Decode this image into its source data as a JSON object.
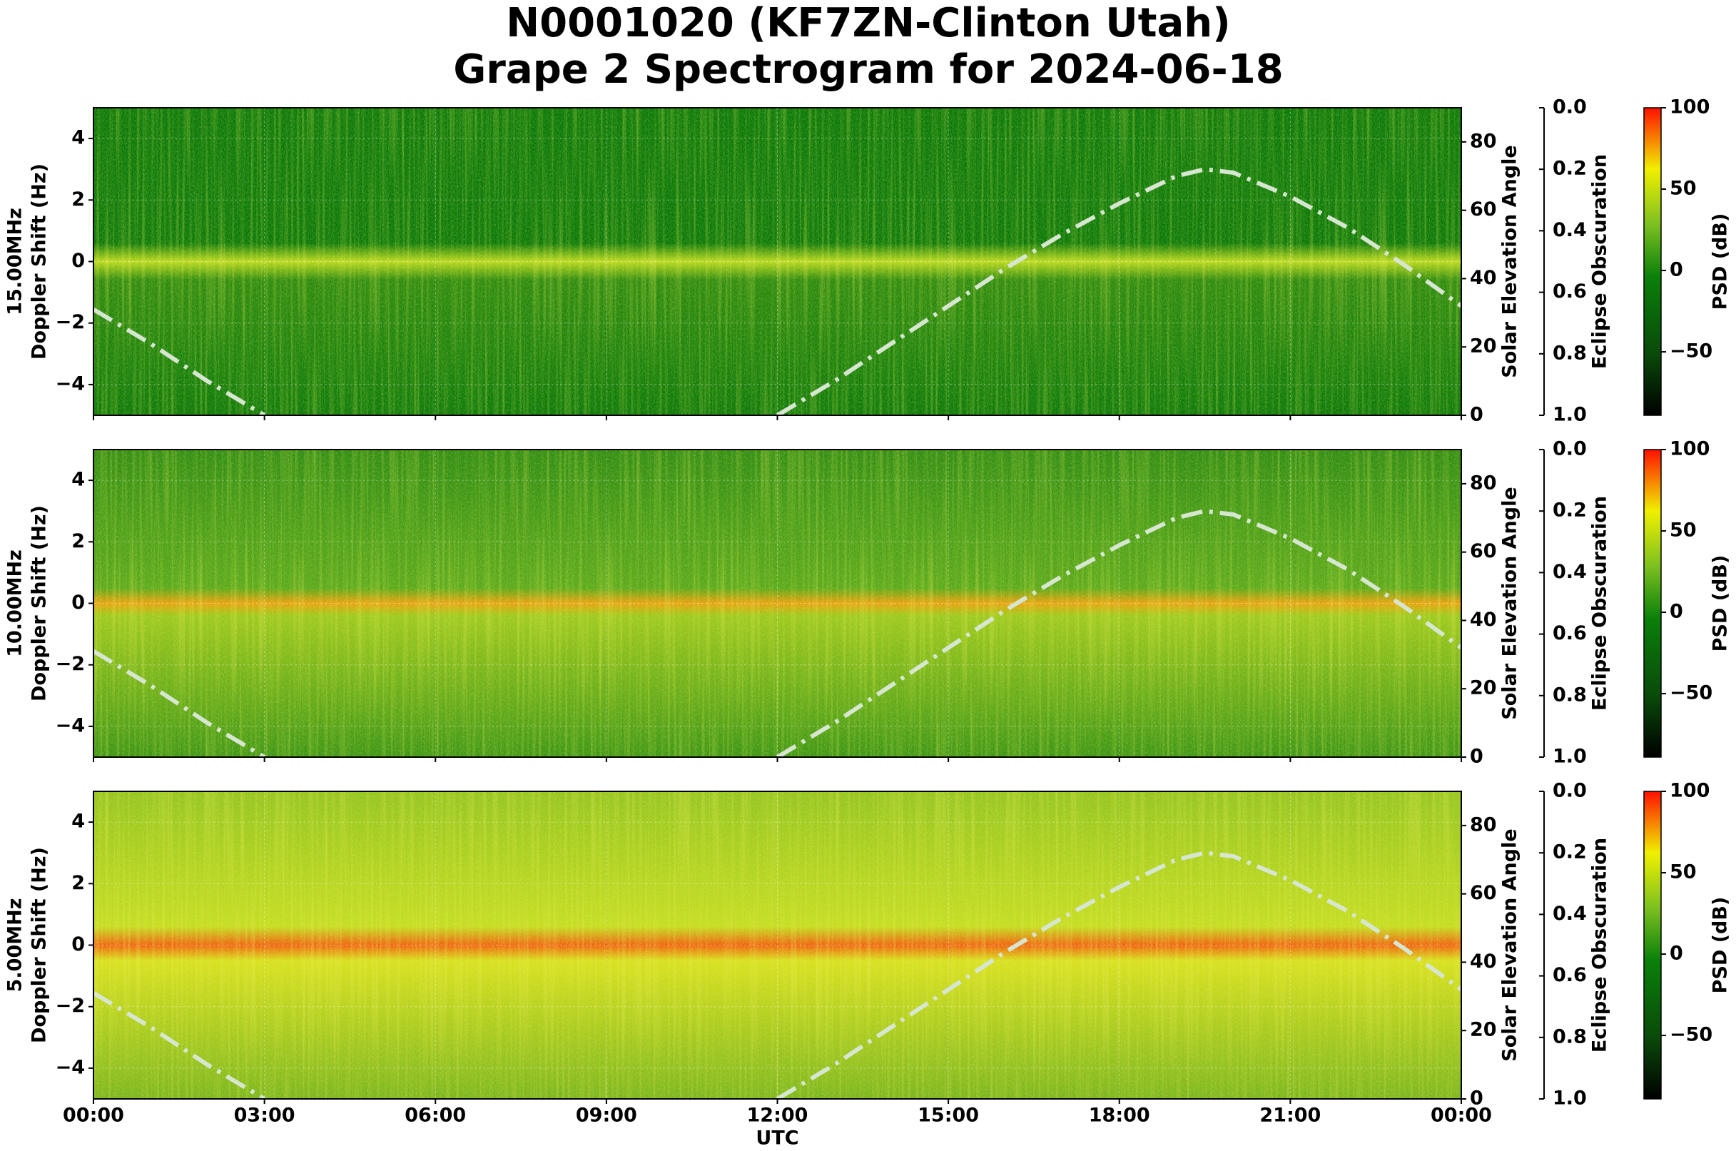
{
  "title": [
    "N0001020 (KF7ZN-Clinton Utah)",
    "Grape 2 Spectrogram for 2024-06-18"
  ],
  "chart_data": [
    {
      "type": "spectrogram",
      "frequency_label": "15.00MHz",
      "ylabel": "Doppler Shift (Hz)",
      "xlim": [
        0,
        24
      ],
      "ylim": [
        -5,
        5
      ],
      "yticks": [
        {
          "value": -4,
          "label": "−4"
        },
        {
          "value": -2,
          "label": "−2"
        },
        0,
        2,
        4
      ],
      "grid": true,
      "y2label": "Solar Elevation Angle",
      "y2lim": [
        0,
        90
      ],
      "y2ticks": [
        0,
        20,
        40,
        60,
        80
      ],
      "solar_elevation": {
        "axis": "y2",
        "color": "#d6e6d0",
        "x": [
          0,
          1,
          2,
          3,
          4,
          5,
          6,
          7,
          8,
          9,
          10,
          11,
          12,
          13,
          14,
          15,
          16,
          17,
          18,
          19,
          19.5,
          20,
          21,
          22,
          23,
          24
        ],
        "values": [
          31,
          21,
          10,
          0,
          null,
          null,
          null,
          null,
          null,
          null,
          null,
          null,
          0,
          10,
          21,
          32,
          43,
          53,
          62,
          70,
          72,
          71,
          64,
          55,
          44,
          32
        ]
      },
      "y3label": "Eclipse Obscuration",
      "y3lim": [
        1,
        0
      ],
      "y3ticks": [
        {
          "value": 0,
          "label": "0.0"
        },
        {
          "value": 0.2,
          "label": "0.2"
        },
        {
          "value": 0.4,
          "label": "0.4"
        },
        {
          "value": 0.6,
          "label": "0.6"
        },
        {
          "value": 0.8,
          "label": "0.8"
        },
        {
          "value": 1,
          "label": "1.0"
        }
      ],
      "colorbar": {
        "label": "PSD (dB)",
        "lim": [
          -89,
          100
        ],
        "ticks": [
          {
            "value": -50,
            "label": "−50"
          },
          0,
          50,
          100
        ]
      }
    },
    {
      "type": "spectrogram",
      "frequency_label": "10.00MHz",
      "ylabel": "Doppler Shift (Hz)",
      "xlim": [
        0,
        24
      ],
      "ylim": [
        -5,
        5
      ],
      "yticks": [
        {
          "value": -4,
          "label": "−4"
        },
        {
          "value": -2,
          "label": "−2"
        },
        0,
        2,
        4
      ],
      "grid": true,
      "y2label": "Solar Elevation Angle",
      "y2lim": [
        0,
        90
      ],
      "y2ticks": [
        0,
        20,
        40,
        60,
        80
      ],
      "solar_elevation": {
        "axis": "y2",
        "color": "#d6e6d0",
        "x": [
          0,
          1,
          2,
          3,
          4,
          5,
          6,
          7,
          8,
          9,
          10,
          11,
          12,
          13,
          14,
          15,
          16,
          17,
          18,
          19,
          19.5,
          20,
          21,
          22,
          23,
          24
        ],
        "values": [
          31,
          21,
          10,
          0,
          null,
          null,
          null,
          null,
          null,
          null,
          null,
          null,
          0,
          10,
          21,
          32,
          43,
          53,
          62,
          70,
          72,
          71,
          64,
          55,
          44,
          32
        ]
      },
      "y3label": "Eclipse Obscuration",
      "y3lim": [
        1,
        0
      ],
      "y3ticks": [
        {
          "value": 0,
          "label": "0.0"
        },
        {
          "value": 0.2,
          "label": "0.2"
        },
        {
          "value": 0.4,
          "label": "0.4"
        },
        {
          "value": 0.6,
          "label": "0.6"
        },
        {
          "value": 0.8,
          "label": "0.8"
        },
        {
          "value": 1,
          "label": "1.0"
        }
      ],
      "colorbar": {
        "label": "PSD (dB)",
        "lim": [
          -89,
          100
        ],
        "ticks": [
          {
            "value": -50,
            "label": "−50"
          },
          0,
          50,
          100
        ]
      }
    },
    {
      "type": "spectrogram",
      "frequency_label": "5.00MHz",
      "ylabel": "Doppler Shift (Hz)",
      "xlabel": "UTC",
      "xlim": [
        0,
        24
      ],
      "xticks": [
        {
          "value": 0,
          "label": "00:00"
        },
        {
          "value": 3,
          "label": "03:00"
        },
        {
          "value": 6,
          "label": "06:00"
        },
        {
          "value": 9,
          "label": "09:00"
        },
        {
          "value": 12,
          "label": "12:00"
        },
        {
          "value": 15,
          "label": "15:00"
        },
        {
          "value": 18,
          "label": "18:00"
        },
        {
          "value": 21,
          "label": "21:00"
        },
        {
          "value": 24,
          "label": "00:00"
        }
      ],
      "ylim": [
        -5,
        5
      ],
      "yticks": [
        {
          "value": -4,
          "label": "−4"
        },
        {
          "value": -2,
          "label": "−2"
        },
        0,
        2,
        4
      ],
      "grid": true,
      "y2label": "Solar Elevation Angle",
      "y2lim": [
        0,
        90
      ],
      "y2ticks": [
        0,
        20,
        40,
        60,
        80
      ],
      "solar_elevation": {
        "axis": "y2",
        "color": "#d6e6d0",
        "x": [
          0,
          1,
          2,
          3,
          4,
          5,
          6,
          7,
          8,
          9,
          10,
          11,
          12,
          13,
          14,
          15,
          16,
          17,
          18,
          19,
          19.5,
          20,
          21,
          22,
          23,
          24
        ],
        "values": [
          31,
          21,
          10,
          0,
          null,
          null,
          null,
          null,
          null,
          null,
          null,
          null,
          0,
          10,
          21,
          32,
          43,
          53,
          62,
          70,
          72,
          71,
          64,
          55,
          44,
          32
        ]
      },
      "y3label": "Eclipse Obscuration",
      "y3lim": [
        1,
        0
      ],
      "y3ticks": [
        {
          "value": 0,
          "label": "0.0"
        },
        {
          "value": 0.2,
          "label": "0.2"
        },
        {
          "value": 0.4,
          "label": "0.4"
        },
        {
          "value": 0.6,
          "label": "0.6"
        },
        {
          "value": 0.8,
          "label": "0.8"
        },
        {
          "value": 1,
          "label": "1.0"
        }
      ],
      "colorbar": {
        "label": "PSD (dB)",
        "lim": [
          -89,
          100
        ],
        "ticks": [
          {
            "value": -50,
            "label": "−50"
          },
          0,
          50,
          100
        ]
      }
    }
  ]
}
